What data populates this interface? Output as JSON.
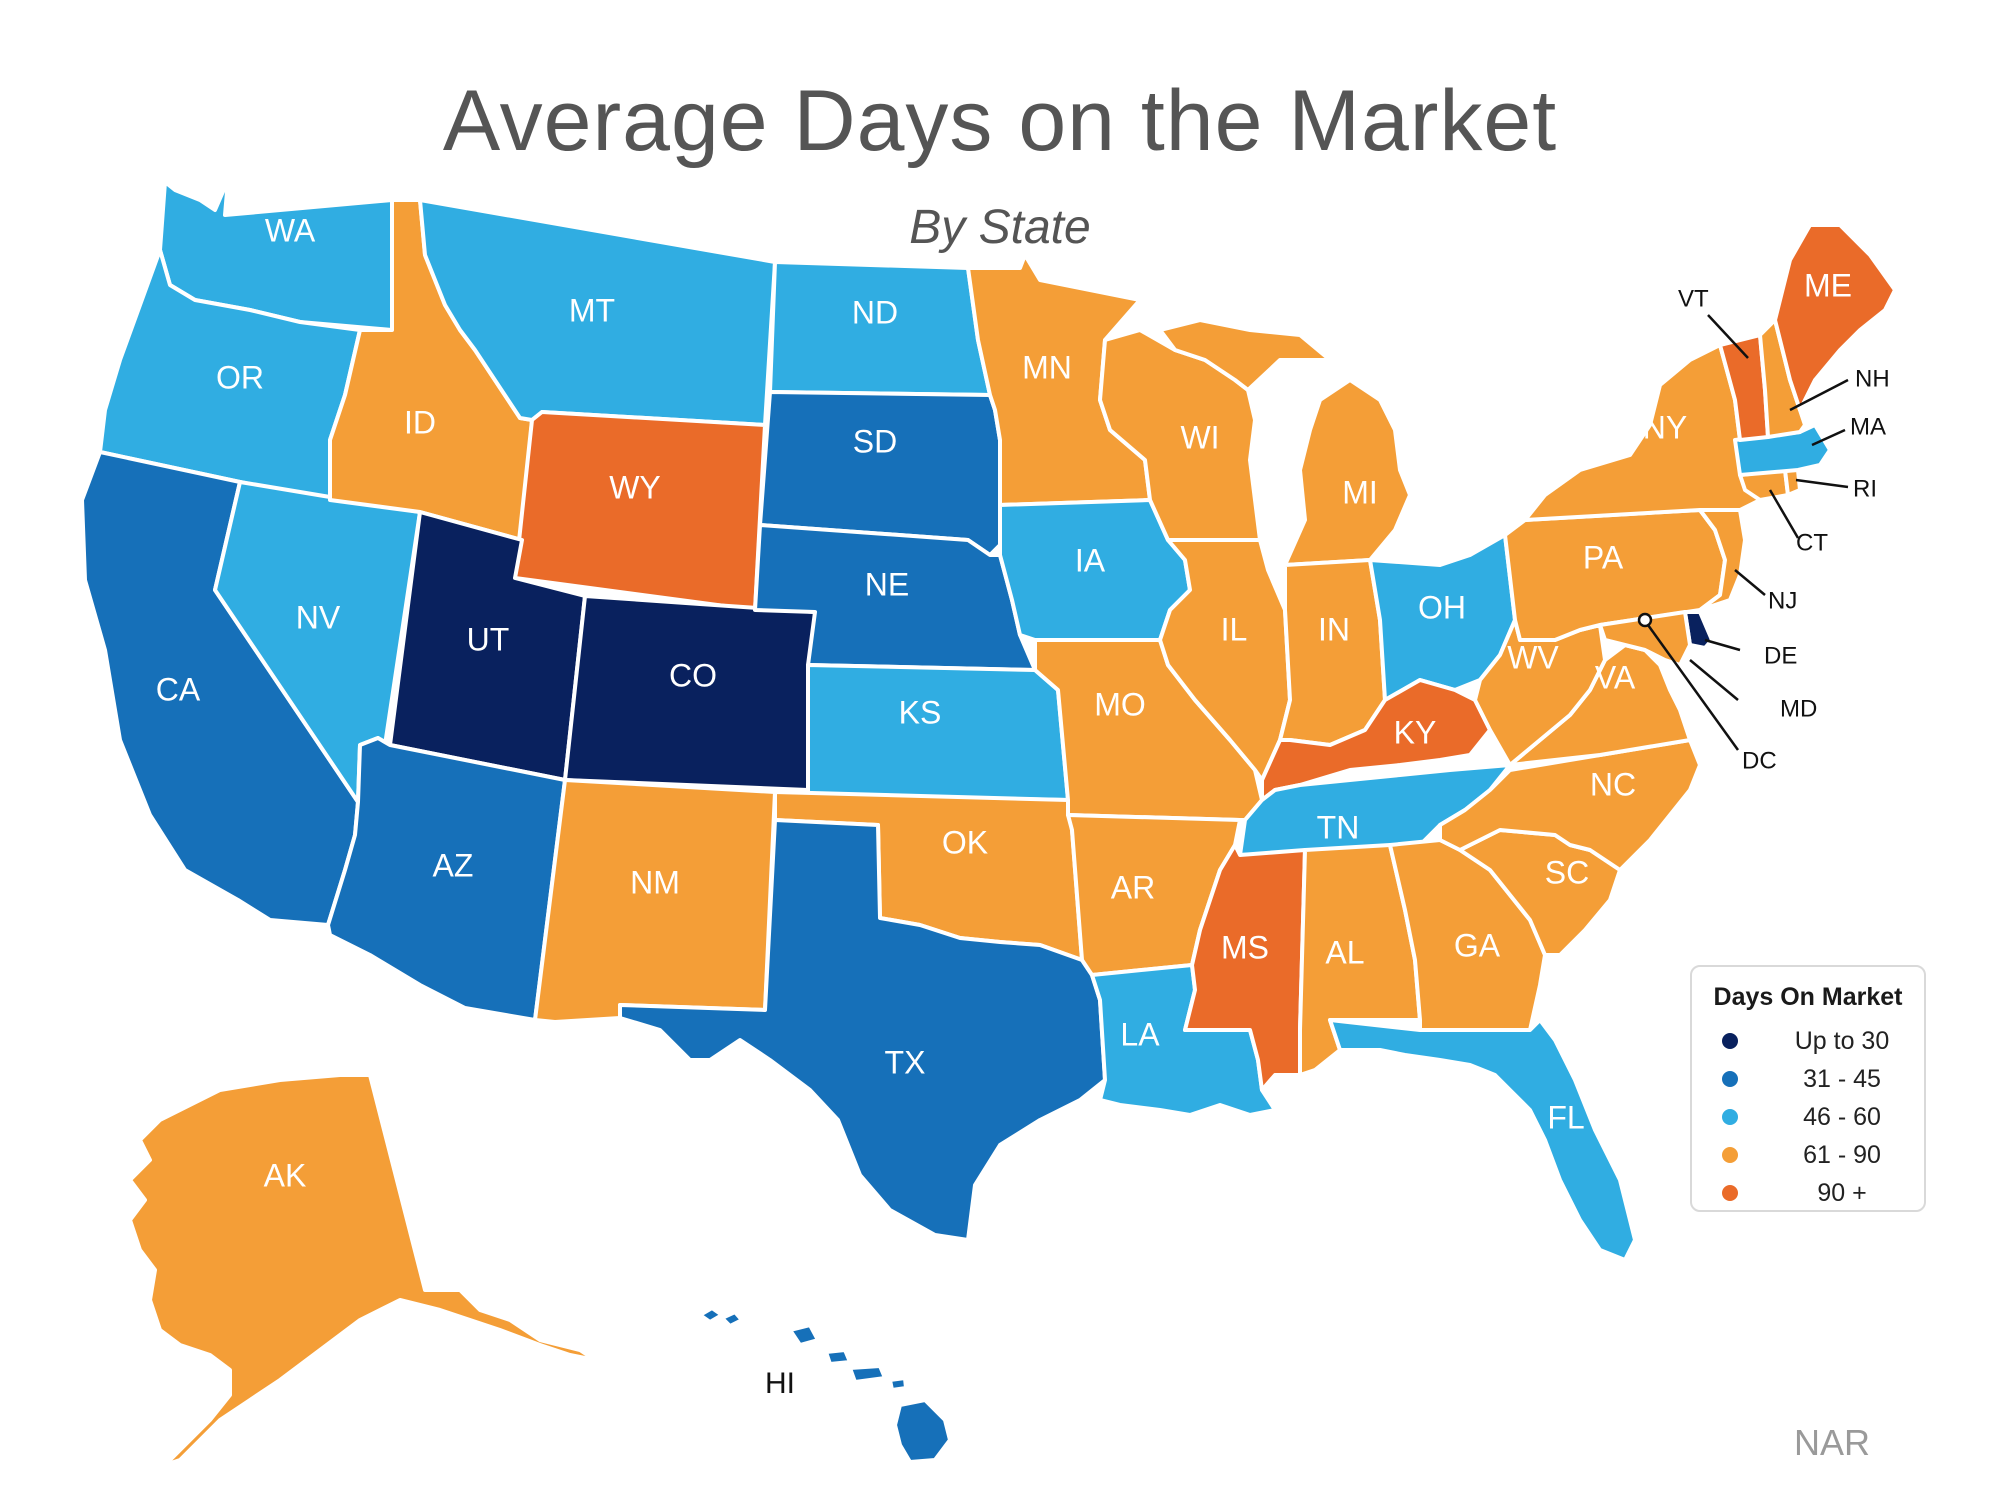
{
  "title": "Average Days on the Market",
  "subtitle": "By State",
  "source": "NAR",
  "colors": {
    "up_to_30": "#09215e",
    "31_45": "#1670b9",
    "46_60": "#30ade2",
    "61_90": "#f49e37",
    "90_plus": "#ea6b29"
  },
  "legend": {
    "title": "Days On Market",
    "items": [
      {
        "label": "Up to 30",
        "category": "up_to_30"
      },
      {
        "label": "31 - 45",
        "category": "31_45"
      },
      {
        "label": "46 - 60",
        "category": "46_60"
      },
      {
        "label": "61 - 90",
        "category": "61_90"
      },
      {
        "label": "90 +",
        "category": "90_plus"
      }
    ]
  },
  "states": [
    {
      "code": "WA",
      "category": "46_60"
    },
    {
      "code": "OR",
      "category": "46_60"
    },
    {
      "code": "CA",
      "category": "31_45"
    },
    {
      "code": "NV",
      "category": "46_60"
    },
    {
      "code": "ID",
      "category": "61_90"
    },
    {
      "code": "MT",
      "category": "46_60"
    },
    {
      "code": "WY",
      "category": "90_plus"
    },
    {
      "code": "UT",
      "category": "up_to_30"
    },
    {
      "code": "CO",
      "category": "up_to_30"
    },
    {
      "code": "AZ",
      "category": "31_45"
    },
    {
      "code": "NM",
      "category": "61_90"
    },
    {
      "code": "ND",
      "category": "46_60"
    },
    {
      "code": "SD",
      "category": "31_45"
    },
    {
      "code": "NE",
      "category": "31_45"
    },
    {
      "code": "KS",
      "category": "46_60"
    },
    {
      "code": "OK",
      "category": "61_90"
    },
    {
      "code": "TX",
      "category": "31_45"
    },
    {
      "code": "MN",
      "category": "61_90"
    },
    {
      "code": "IA",
      "category": "46_60"
    },
    {
      "code": "MO",
      "category": "61_90"
    },
    {
      "code": "AR",
      "category": "61_90"
    },
    {
      "code": "LA",
      "category": "46_60"
    },
    {
      "code": "WI",
      "category": "61_90"
    },
    {
      "code": "IL",
      "category": "61_90"
    },
    {
      "code": "MI",
      "category": "61_90"
    },
    {
      "code": "IN",
      "category": "61_90"
    },
    {
      "code": "OH",
      "category": "46_60"
    },
    {
      "code": "KY",
      "category": "90_plus"
    },
    {
      "code": "TN",
      "category": "46_60"
    },
    {
      "code": "MS",
      "category": "90_plus"
    },
    {
      "code": "AL",
      "category": "61_90"
    },
    {
      "code": "GA",
      "category": "61_90"
    },
    {
      "code": "FL",
      "category": "46_60"
    },
    {
      "code": "SC",
      "category": "61_90"
    },
    {
      "code": "NC",
      "category": "61_90"
    },
    {
      "code": "VA",
      "category": "61_90"
    },
    {
      "code": "WV",
      "category": "61_90"
    },
    {
      "code": "PA",
      "category": "61_90"
    },
    {
      "code": "NY",
      "category": "61_90"
    },
    {
      "code": "NJ",
      "category": "61_90"
    },
    {
      "code": "DE",
      "category": "up_to_30"
    },
    {
      "code": "MD",
      "category": "61_90"
    },
    {
      "code": "DC",
      "category": "61_90"
    },
    {
      "code": "CT",
      "category": "61_90"
    },
    {
      "code": "RI",
      "category": "61_90"
    },
    {
      "code": "MA",
      "category": "46_60"
    },
    {
      "code": "VT",
      "category": "90_plus"
    },
    {
      "code": "NH",
      "category": "61_90"
    },
    {
      "code": "ME",
      "category": "90_plus"
    },
    {
      "code": "AK",
      "category": "61_90"
    },
    {
      "code": "HI",
      "category": "31_45"
    }
  ]
}
